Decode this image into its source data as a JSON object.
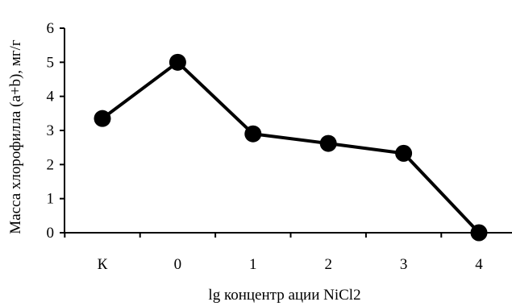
{
  "chart_data": {
    "type": "line",
    "categories": [
      "К",
      "0",
      "1",
      "2",
      "3",
      "4"
    ],
    "series": [
      {
        "values": [
          3.35,
          5.0,
          2.9,
          2.62,
          2.33,
          0.0
        ]
      }
    ],
    "ylim": [
      0,
      6
    ],
    "yticks": [
      0,
      1,
      2,
      3,
      4,
      5,
      6
    ],
    "xlabel": "lg концентр ации NiCl2",
    "ylabel": "Масса хлорофилла (a+b), мг/г",
    "grid": false,
    "line_color": "#000000",
    "marker_color": "#000000"
  }
}
